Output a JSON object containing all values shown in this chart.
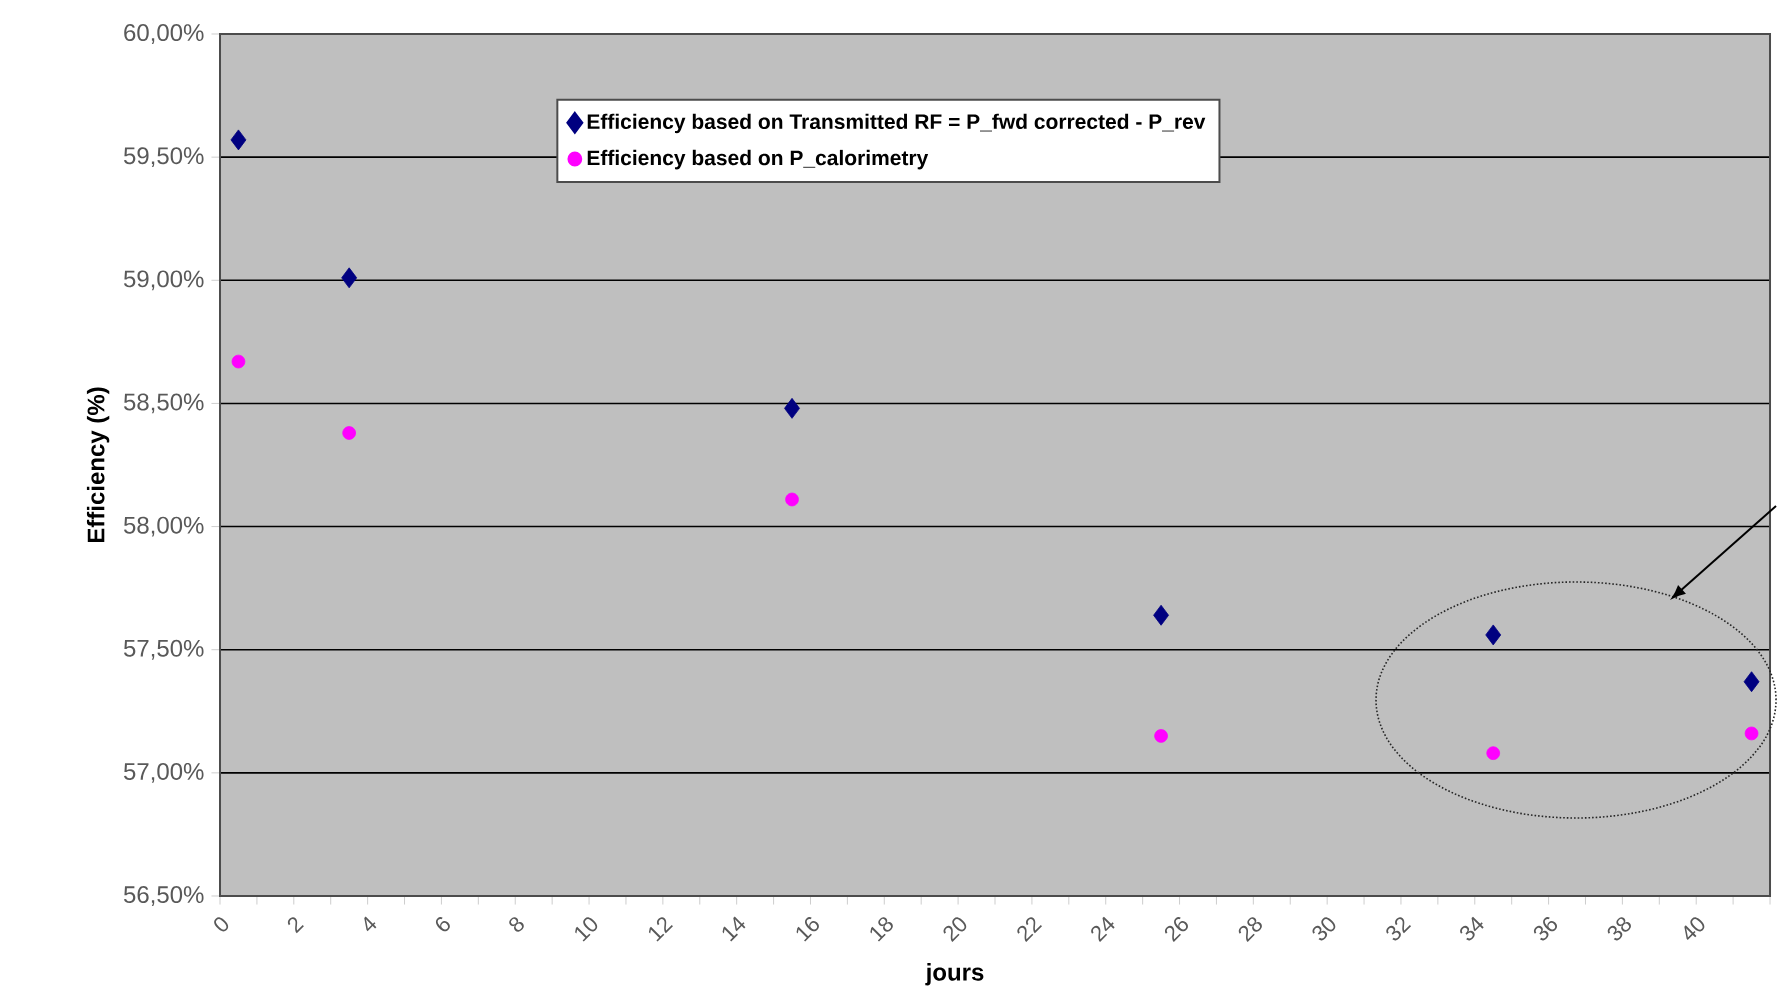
{
  "chart_data": {
    "type": "scatter",
    "xlabel": "jours",
    "ylabel": "Efficiency (%)",
    "xlim": [
      0,
      42
    ],
    "ylim": [
      56.5,
      60
    ],
    "xticks": [
      0,
      {
        "value": 1,
        "label": null
      },
      2,
      {
        "value": 3,
        "label": null
      },
      4,
      {
        "value": 5,
        "label": null
      },
      6,
      {
        "value": 7,
        "label": null
      },
      8,
      {
        "value": 9,
        "label": null
      },
      10,
      {
        "value": 11,
        "label": null
      },
      12,
      {
        "value": 13,
        "label": null
      },
      14,
      {
        "value": 15,
        "label": null
      },
      16,
      {
        "value": 17,
        "label": null
      },
      18,
      {
        "value": 19,
        "label": null
      },
      20,
      {
        "value": 21,
        "label": null
      },
      22,
      {
        "value": 23,
        "label": null
      },
      24,
      {
        "value": 25,
        "label": null
      },
      26,
      {
        "value": 27,
        "label": null
      },
      28,
      {
        "value": 29,
        "label": null
      },
      30,
      {
        "value": 31,
        "label": null
      },
      32,
      {
        "value": 33,
        "label": null
      },
      34,
      {
        "value": 35,
        "label": null
      },
      36,
      {
        "value": 37,
        "label": null
      },
      38,
      {
        "value": 39,
        "label": null
      },
      40,
      {
        "value": 41,
        "label": null
      },
      {
        "value": 42,
        "label": null
      }
    ],
    "yticks": [
      {
        "value": 56.5,
        "label": "56,50%"
      },
      {
        "value": 57,
        "label": "57,00%"
      },
      {
        "value": 57.5,
        "label": "57,50%"
      },
      {
        "value": 58,
        "label": "58,00%"
      },
      {
        "value": 58.5,
        "label": "58,50%"
      },
      {
        "value": 59,
        "label": "59,00%"
      },
      {
        "value": 59.5,
        "label": "59,50%"
      },
      {
        "value": 60,
        "label": "60,00%"
      }
    ],
    "grid": "y",
    "legend": "top",
    "x": [
      0.5,
      3.5,
      15.5,
      25.5,
      34.5,
      41.5
    ],
    "series": [
      {
        "name": "Efficiency based on Transmitted RF = P_fwd corrected - P_rev",
        "color": "#000080",
        "marker": "diamond",
        "values": [
          59.57,
          59.01,
          58.48,
          57.64,
          57.56,
          57.37
        ]
      },
      {
        "name": "Efficiency based on P_calorimetry",
        "color": "#ff00ff",
        "marker": "circle",
        "values": [
          58.67,
          58.38,
          58.11,
          57.15,
          57.08,
          57.16
        ]
      }
    ]
  }
}
